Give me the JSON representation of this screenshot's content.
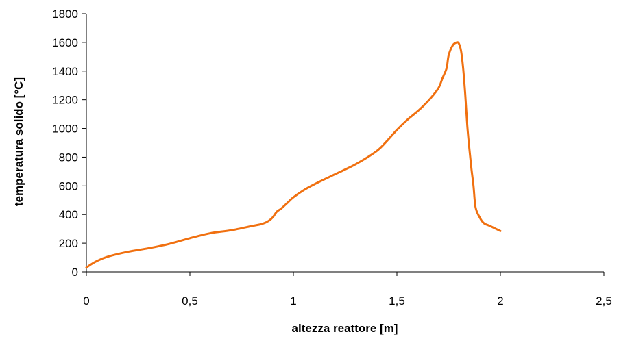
{
  "chart_data": {
    "type": "line",
    "title": "",
    "xlabel": "altezza reattore [m]",
    "ylabel": "temperatura solido [°C]",
    "xlim": [
      0,
      2.5
    ],
    "ylim": [
      0,
      1800
    ],
    "x_ticks": [
      0,
      0.5,
      1,
      1.5,
      2,
      2.5
    ],
    "x_tick_labels": [
      "0",
      "0,5",
      "1",
      "1,5",
      "2",
      "2,5"
    ],
    "y_ticks": [
      0,
      200,
      400,
      600,
      800,
      1000,
      1200,
      1400,
      1600,
      1800
    ],
    "y_tick_labels": [
      "0",
      "200",
      "400",
      "600",
      "800",
      "1000",
      "1200",
      "1400",
      "1600",
      "1800"
    ],
    "grid": false,
    "legend": "none",
    "colors": {
      "series": "#F07010",
      "axis": "#000000"
    },
    "series": [
      {
        "x": [
          0,
          0.02,
          0.05,
          0.1,
          0.2,
          0.3,
          0.4,
          0.5,
          0.6,
          0.7,
          0.8,
          0.85,
          0.88,
          0.9,
          0.92,
          0.94,
          0.97,
          1.0,
          1.05,
          1.1,
          1.2,
          1.3,
          1.4,
          1.45,
          1.5,
          1.55,
          1.6,
          1.65,
          1.7,
          1.72,
          1.74,
          1.75,
          1.77,
          1.79,
          1.8,
          1.81,
          1.82,
          1.83,
          1.84,
          1.85,
          1.86,
          1.87,
          1.88,
          1.9,
          1.92,
          1.95,
          2.0
        ],
        "y": [
          30,
          50,
          75,
          105,
          140,
          165,
          195,
          235,
          270,
          290,
          320,
          335,
          355,
          380,
          420,
          440,
          480,
          520,
          570,
          610,
          680,
          750,
          840,
          910,
          990,
          1060,
          1120,
          1190,
          1280,
          1350,
          1420,
          1510,
          1580,
          1600,
          1590,
          1540,
          1420,
          1240,
          1020,
          860,
          720,
          600,
          450,
          380,
          340,
          320,
          285
        ]
      }
    ]
  }
}
